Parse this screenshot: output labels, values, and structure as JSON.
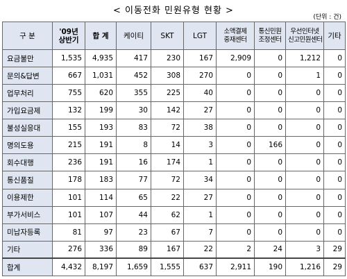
{
  "title": "< 이동전화 민원유형 현황 >",
  "unit": "(단위 : 건)",
  "columns": [
    "구 분",
    "'09년 상반기",
    "합 계",
    "케이티",
    "SKT",
    "LGT",
    "소액결제 중재센터",
    "통신민원 조정센터",
    "우선인터넷 신고민원센터",
    "기타"
  ],
  "header_split": {
    "h1a": "'09년",
    "h1b": "상반기",
    "h6a": "소액결제",
    "h6b": "중재센터",
    "h7a": "통신민원",
    "h7b": "조정센터",
    "h8a": "우선인터넷",
    "h8b": "신고민원센터"
  },
  "rows": [
    {
      "label": "요금불만",
      "v": [
        "1,535",
        "4,935",
        "417",
        "230",
        "167",
        "2,909",
        "0",
        "1,212",
        "0"
      ]
    },
    {
      "label": "문의&답변",
      "v": [
        "667",
        "1,031",
        "452",
        "308",
        "270",
        "0",
        "0",
        "1",
        "0"
      ]
    },
    {
      "label": "업무처리",
      "v": [
        "755",
        "620",
        "355",
        "225",
        "40",
        "0",
        "0",
        "0",
        "0"
      ]
    },
    {
      "label": "가입요금제",
      "v": [
        "132",
        "199",
        "30",
        "142",
        "27",
        "0",
        "0",
        "0",
        "0"
      ]
    },
    {
      "label": "불성실응대",
      "v": [
        "155",
        "193",
        "83",
        "72",
        "38",
        "0",
        "0",
        "0",
        "0"
      ]
    },
    {
      "label": "명의도용",
      "v": [
        "215",
        "191",
        "8",
        "14",
        "3",
        "0",
        "166",
        "0",
        "0"
      ]
    },
    {
      "label": "회수대행",
      "v": [
        "236",
        "191",
        "16",
        "174",
        "1",
        "0",
        "0",
        "0",
        "0"
      ]
    },
    {
      "label": "통신품질",
      "v": [
        "178",
        "183",
        "77",
        "72",
        "34",
        "0",
        "0",
        "0",
        "0"
      ]
    },
    {
      "label": "이용제한",
      "v": [
        "101",
        "114",
        "65",
        "22",
        "27",
        "0",
        "0",
        "0",
        "0"
      ]
    },
    {
      "label": "부가서비스",
      "v": [
        "101",
        "107",
        "44",
        "62",
        "1",
        "0",
        "0",
        "0",
        "0"
      ]
    },
    {
      "label": "미납자등록",
      "v": [
        "81",
        "97",
        "23",
        "67",
        "7",
        "0",
        "0",
        "0",
        "0"
      ]
    },
    {
      "label": "기타",
      "v": [
        "276",
        "336",
        "89",
        "167",
        "22",
        "2",
        "24",
        "3",
        "29"
      ]
    },
    {
      "label": "합계",
      "v": [
        "4,432",
        "8,197",
        "1,659",
        "1,555",
        "637",
        "2,911",
        "190",
        "1,216",
        "29"
      ]
    }
  ]
}
